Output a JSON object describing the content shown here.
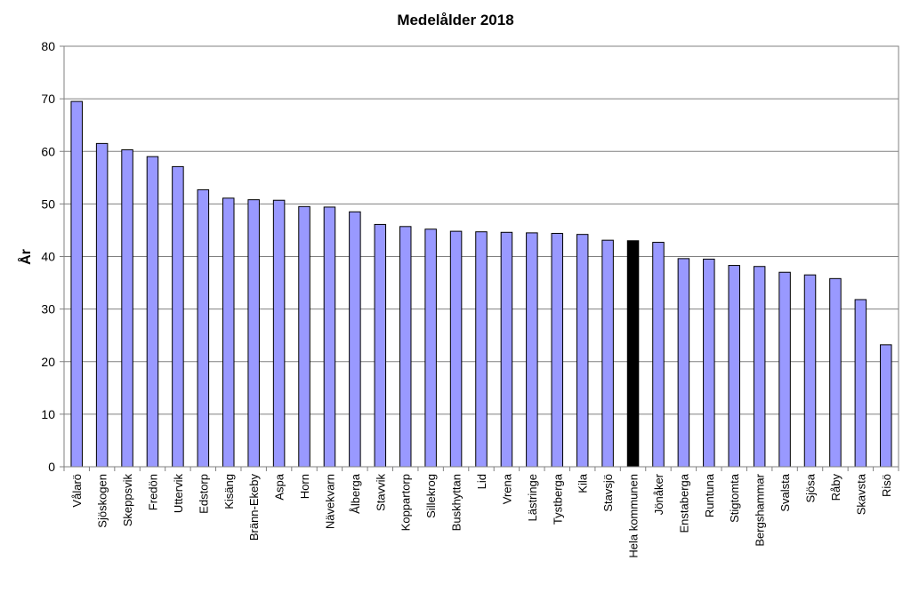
{
  "chart_data": {
    "type": "bar",
    "title": "Medelålder 2018",
    "xlabel": "",
    "ylabel": "År",
    "ylim": [
      0,
      80
    ],
    "yticks": [
      0,
      10,
      20,
      30,
      40,
      50,
      60,
      70,
      80
    ],
    "grid": true,
    "legend": "none",
    "bar_color": "#9999ff",
    "highlight_color": "#000000",
    "highlight_category": "Hela kommunen",
    "categories": [
      "Vålarö",
      "Sjöskogen",
      "Skeppsvik",
      "Fredön",
      "Uttervik",
      "Edstorp",
      "Kisäng",
      "Bränn-Ekeby",
      "Aspa",
      "Horn",
      "Nävekvarn",
      "Ålberga",
      "Stavvik",
      "Koppartorp",
      "Sillekrog",
      "Buskhyttan",
      "Lid",
      "Vrena",
      "Lästringe",
      "Tystberga",
      "Kila",
      "Stavsjö",
      "Hela kommunen",
      "Jönåker",
      "Enstaberga",
      "Runtuna",
      "Stigtomta",
      "Bergshammar",
      "Svalsta",
      "Sjösa",
      "Råby",
      "Skavsta",
      "Risö"
    ],
    "values": [
      69.5,
      61.5,
      60.3,
      59.0,
      57.1,
      52.7,
      51.1,
      50.8,
      50.7,
      49.5,
      49.4,
      48.5,
      46.1,
      45.7,
      45.2,
      44.8,
      44.7,
      44.6,
      44.5,
      44.4,
      44.2,
      43.1,
      43.0,
      42.7,
      39.6,
      39.5,
      38.3,
      38.1,
      37.0,
      36.5,
      35.8,
      31.8,
      23.2
    ]
  }
}
